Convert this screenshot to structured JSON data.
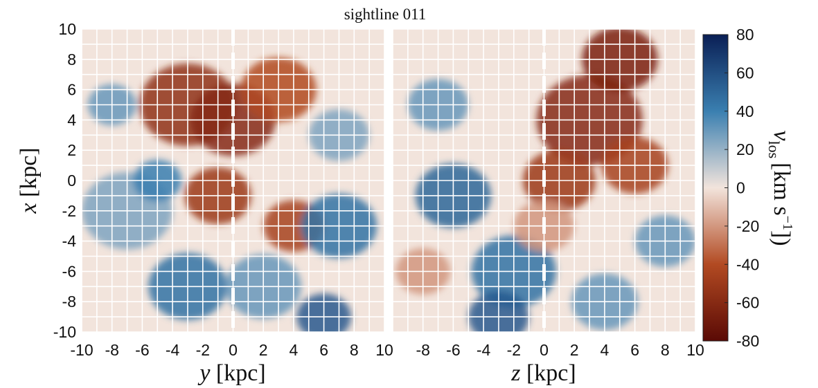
{
  "chart_data": {
    "type": "heatmap",
    "title": "sightline 011",
    "panels": [
      {
        "id": "left",
        "xlabel_var": "y",
        "xlabel_unit": "[kpc]",
        "ylabel_var": "x",
        "ylabel_unit": "[kpc]",
        "xlim": [
          -10,
          10
        ],
        "ylim": [
          -10,
          10
        ],
        "xticks": [
          "-10",
          "-8",
          "-6",
          "-4",
          "-2",
          "0",
          "2",
          "4",
          "6",
          "8",
          "10"
        ],
        "yticks": [
          "10",
          "8",
          "6",
          "4",
          "2",
          "0",
          "-2",
          "-4",
          "-6",
          "-8",
          "-10"
        ],
        "sightline_x": 0,
        "grid_spacing": 1,
        "velocity_features": [
          {
            "x": -3,
            "y": 5,
            "v": -55,
            "r": 3.2
          },
          {
            "x": 0,
            "y": 4,
            "v": -60,
            "r": 2.8
          },
          {
            "x": 3,
            "y": 6,
            "v": -40,
            "r": 2.5
          },
          {
            "x": -1,
            "y": -1,
            "v": -50,
            "r": 2.2
          },
          {
            "x": 4,
            "y": -3,
            "v": -45,
            "r": 2.0
          },
          {
            "x": -7,
            "y": -2,
            "v": 25,
            "r": 3.0
          },
          {
            "x": -3,
            "y": -7,
            "v": 45,
            "r": 2.6
          },
          {
            "x": 2,
            "y": -7,
            "v": 30,
            "r": 2.5
          },
          {
            "x": 7,
            "y": -3,
            "v": 45,
            "r": 2.5
          },
          {
            "x": 6,
            "y": -9,
            "v": 55,
            "r": 1.8
          },
          {
            "x": -5,
            "y": 0,
            "v": 40,
            "r": 1.6
          },
          {
            "x": 7,
            "y": 3,
            "v": 25,
            "r": 2.0
          },
          {
            "x": -8,
            "y": 5,
            "v": 30,
            "r": 1.6
          }
        ]
      },
      {
        "id": "right",
        "xlabel_var": "z",
        "xlabel_unit": "[kpc]",
        "xlim": [
          -10,
          10
        ],
        "ylim": [
          -10,
          10
        ],
        "xticks": [
          "-8",
          "-6",
          "-4",
          "-2",
          "0",
          "2",
          "4",
          "6",
          "8",
          "10"
        ],
        "sightline_x": 0,
        "grid_spacing": 1,
        "velocity_features": [
          {
            "x": 3,
            "y": 4,
            "v": -60,
            "r": 3.5
          },
          {
            "x": 5,
            "y": 8,
            "v": -65,
            "r": 2.5
          },
          {
            "x": 1,
            "y": 0,
            "v": -50,
            "r": 2.4
          },
          {
            "x": 6,
            "y": 1,
            "v": -45,
            "r": 2.2
          },
          {
            "x": -6,
            "y": -1,
            "v": 50,
            "r": 2.5
          },
          {
            "x": -7,
            "y": 5,
            "v": 30,
            "r": 2.0
          },
          {
            "x": -2,
            "y": -6,
            "v": 45,
            "r": 2.8
          },
          {
            "x": -3,
            "y": -9,
            "v": 55,
            "r": 2.0
          },
          {
            "x": 4,
            "y": -8,
            "v": 30,
            "r": 2.2
          },
          {
            "x": 8,
            "y": -4,
            "v": 30,
            "r": 2.0
          },
          {
            "x": -8,
            "y": -6,
            "v": -20,
            "r": 1.8
          },
          {
            "x": 0,
            "y": -3,
            "v": -20,
            "r": 2.0
          }
        ]
      }
    ],
    "colorbar": {
      "label": "v_los [km s^-1]",
      "label_main": "v",
      "label_sub": "los",
      "label_unit": "[km s",
      "label_exp": "−1",
      "label_close": "])",
      "vmin": -80,
      "vmax": 80,
      "ticks": [
        "80",
        "60",
        "40",
        "20",
        "0",
        "-20",
        "-40",
        "-60",
        "-80"
      ],
      "colors": [
        "#5a0a05",
        "#b24a22",
        "#f2e4dc",
        "#3a7fb0",
        "#0a1f55"
      ]
    }
  }
}
